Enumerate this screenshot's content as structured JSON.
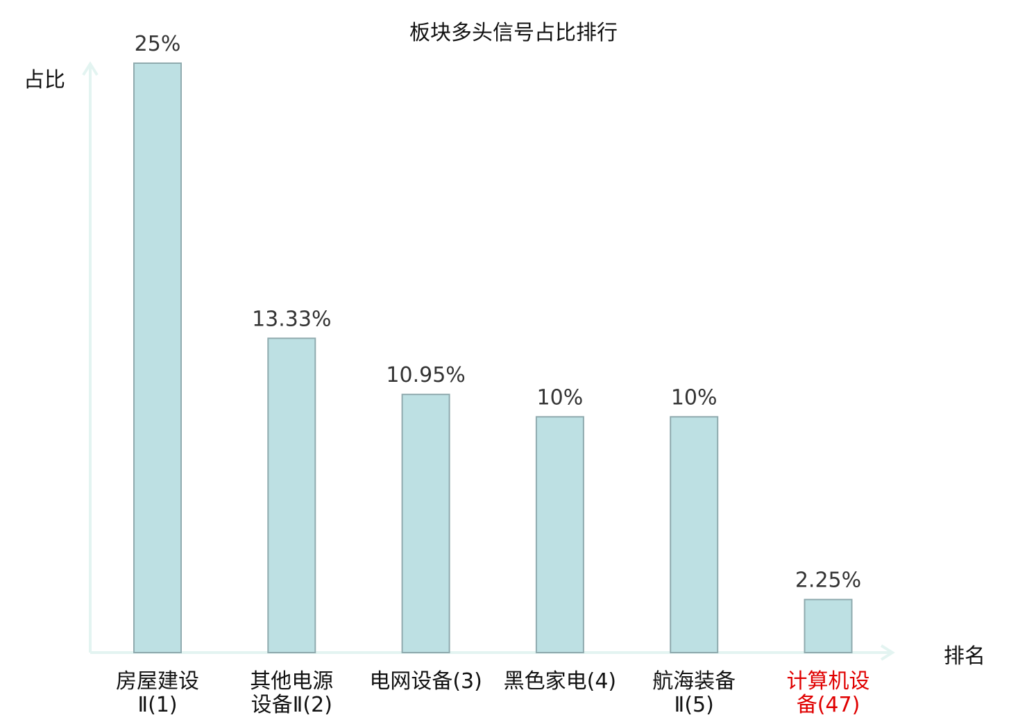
{
  "chart_data": {
    "type": "bar",
    "title": "板块多头信号占比排行",
    "ylabel": "占比",
    "xlabel": "排名",
    "ylim": [
      0,
      25
    ],
    "grid": false,
    "categories": [
      [
        "房屋建设",
        "Ⅱ(1)"
      ],
      [
        "其他电源",
        "设备Ⅱ(2)"
      ],
      [
        "电网设备(3)"
      ],
      [
        "黑色家电(4)"
      ],
      [
        "航海装备",
        "Ⅱ(5)"
      ],
      [
        "计算机设",
        "备(47)"
      ]
    ],
    "values": [
      25,
      13.33,
      10.95,
      10,
      10,
      2.25
    ],
    "value_labels": [
      "25%",
      "13.33%",
      "10.95%",
      "10%",
      "10%",
      "2.25%"
    ],
    "highlight_index": 5,
    "colors": {
      "bar_fill": "#bde0e3",
      "bar_stroke": "#8faaae",
      "axis": "#e3f4f1",
      "highlight_text": "#e00000"
    }
  }
}
